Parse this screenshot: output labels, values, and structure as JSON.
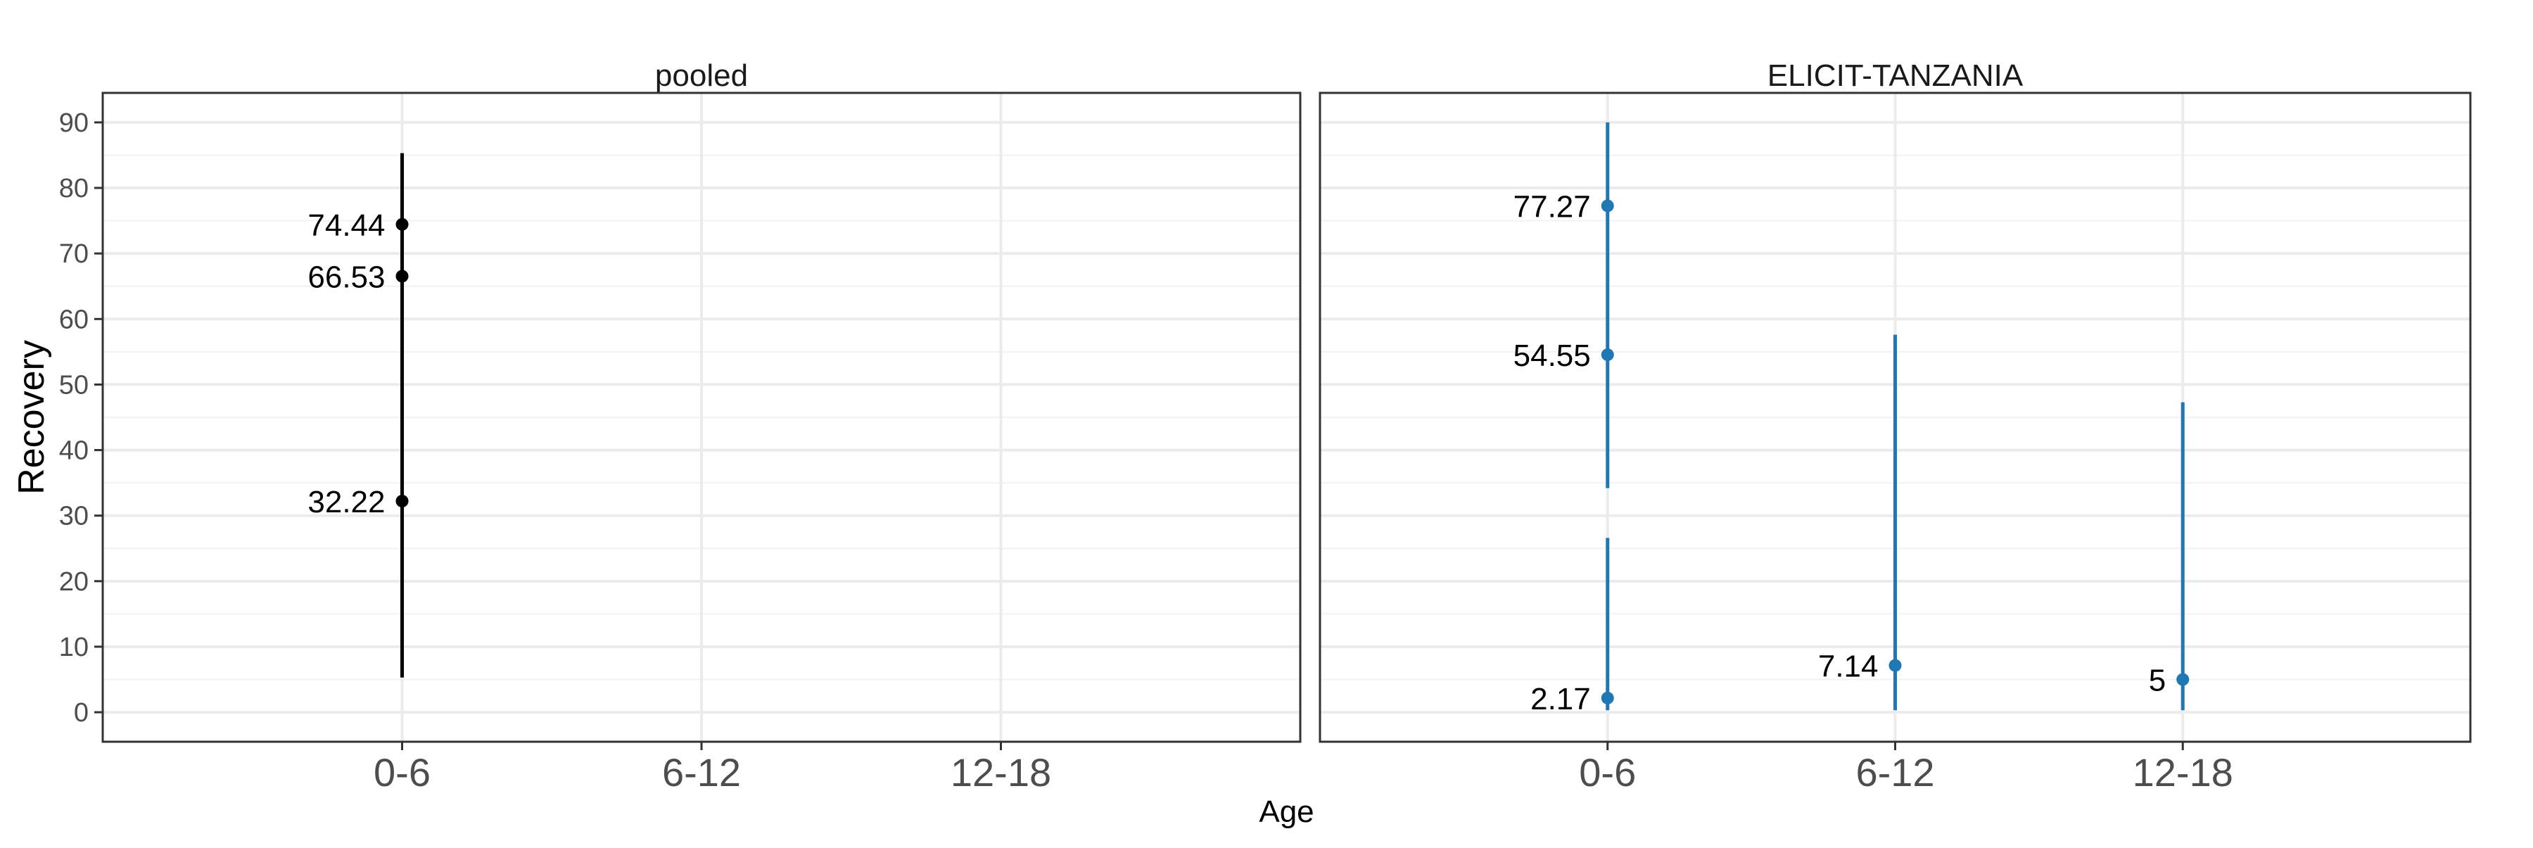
{
  "chart_data": {
    "type": "scatter",
    "style": "point-range",
    "ylabel": "Recovery",
    "xlabel": "Age",
    "categories": [
      "0-6",
      "6-12",
      "12-18"
    ],
    "ylim": [
      -4.5,
      94.5
    ],
    "yticks": [
      0,
      10,
      20,
      30,
      40,
      50,
      60,
      70,
      80,
      90
    ],
    "grid": true,
    "panels": [
      {
        "title": "pooled",
        "color": "#000000",
        "points": [
          {
            "category": "0-6",
            "y": 74.44,
            "label": "74.44",
            "lo": 5.3,
            "hi": 85.3
          },
          {
            "category": "0-6",
            "y": 66.53,
            "label": "66.53",
            "lo": 5.3,
            "hi": 85.3
          },
          {
            "category": "0-6",
            "y": 32.22,
            "label": "32.22",
            "lo": 5.3,
            "hi": 85.3
          }
        ]
      },
      {
        "title": "ELICIT-TANZANIA",
        "color": "#1f77b4",
        "points": [
          {
            "category": "0-6",
            "y": 77.27,
            "label": "77.27",
            "lo": 34.2,
            "hi": 90.0
          },
          {
            "category": "0-6",
            "y": 54.55,
            "label": "54.55",
            "lo": 34.2,
            "hi": 90.0
          },
          {
            "category": "0-6",
            "y": 2.17,
            "label": "2.17",
            "lo": 0.3,
            "hi": 26.6
          },
          {
            "category": "6-12",
            "y": 7.14,
            "label": "7.14",
            "lo": 0.3,
            "hi": 57.6
          },
          {
            "category": "12-18",
            "y": 5,
            "label": "5",
            "lo": 0.3,
            "hi": 47.3
          }
        ]
      }
    ]
  }
}
